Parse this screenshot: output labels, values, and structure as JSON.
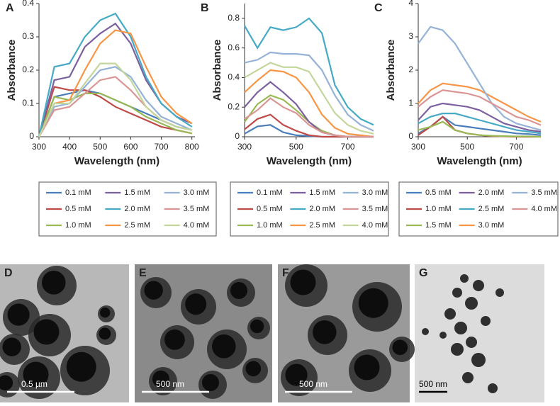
{
  "chart_data": [
    {
      "type": "line",
      "panel": "A",
      "x_label": "Wavelength (nm)",
      "y_label": "Absorbance",
      "x": [
        300,
        350,
        400,
        450,
        500,
        550,
        600,
        650,
        700,
        750,
        800
      ],
      "xlim": [
        300,
        810
      ],
      "xticks": [
        300,
        400,
        500,
        600,
        700,
        800
      ],
      "ylim": [
        0,
        0.4
      ],
      "yticks": [
        0,
        0.1,
        0.2,
        0.3,
        0.4
      ],
      "series": [
        {
          "name": "0.1 mM",
          "color": "#4a7ebb",
          "values": [
            0,
            0.12,
            0.13,
            0.14,
            0.13,
            0.11,
            0.09,
            0.07,
            0.05,
            0.03,
            0.02
          ]
        },
        {
          "name": "0.5 mM",
          "color": "#be4b48",
          "values": [
            0,
            0.15,
            0.14,
            0.14,
            0.12,
            0.09,
            0.07,
            0.05,
            0.03,
            0.02,
            0.01
          ]
        },
        {
          "name": "1.0 mM",
          "color": "#98b954",
          "values": [
            0,
            0.12,
            0.11,
            0.13,
            0.13,
            0.11,
            0.09,
            0.06,
            0.04,
            0.02,
            0.01
          ]
        },
        {
          "name": "1.5 mM",
          "color": "#7d60a0",
          "values": [
            0,
            0.17,
            0.18,
            0.27,
            0.31,
            0.34,
            0.28,
            0.17,
            0.1,
            0.06,
            0.04
          ]
        },
        {
          "name": "2.0 mM",
          "color": "#46aac5",
          "values": [
            0,
            0.21,
            0.22,
            0.3,
            0.35,
            0.37,
            0.3,
            0.18,
            0.1,
            0.06,
            0.03
          ]
        },
        {
          "name": "2.5 mM",
          "color": "#f79646",
          "values": [
            0,
            0.1,
            0.11,
            0.2,
            0.28,
            0.32,
            0.31,
            0.21,
            0.12,
            0.07,
            0.04
          ]
        },
        {
          "name": "3.0 mM",
          "color": "#95b3d7",
          "values": [
            0,
            0.09,
            0.1,
            0.15,
            0.2,
            0.21,
            0.18,
            0.11,
            0.06,
            0.04,
            0.02
          ]
        },
        {
          "name": "3.5 mM",
          "color": "#d99694",
          "values": [
            0,
            0.08,
            0.09,
            0.13,
            0.17,
            0.18,
            0.14,
            0.09,
            0.05,
            0.03,
            0.02
          ]
        },
        {
          "name": "4.0 mM",
          "color": "#c3d69b",
          "values": [
            0,
            0.1,
            0.1,
            0.16,
            0.22,
            0.22,
            0.17,
            0.09,
            0.05,
            0.03,
            0.02
          ]
        }
      ]
    },
    {
      "type": "line",
      "panel": "B",
      "x_label": "Wavelength (nm)",
      "y_label": "Absorbance",
      "x": [
        300,
        350,
        400,
        450,
        500,
        550,
        600,
        650,
        700,
        750,
        800
      ],
      "xlim": [
        300,
        800
      ],
      "xticks": [
        300,
        500,
        700
      ],
      "ylim": [
        0,
        0.9
      ],
      "yticks": [
        0,
        0.2,
        0.4,
        0.6,
        0.8
      ],
      "series": [
        {
          "name": "0.1 mM",
          "color": "#4a7ebb",
          "values": [
            0.02,
            0.07,
            0.08,
            0.03,
            0.01,
            0.005,
            0,
            0,
            0,
            0,
            0
          ]
        },
        {
          "name": "0.5 mM",
          "color": "#be4b48",
          "values": [
            0.05,
            0.12,
            0.15,
            0.08,
            0.04,
            0.01,
            0,
            0,
            0,
            0,
            0
          ]
        },
        {
          "name": "1.0 mM",
          "color": "#98b954",
          "values": [
            0.1,
            0.22,
            0.28,
            0.25,
            0.18,
            0.1,
            0.04,
            0.01,
            0,
            0,
            0
          ]
        },
        {
          "name": "1.5 mM",
          "color": "#7d60a0",
          "values": [
            0.2,
            0.3,
            0.37,
            0.3,
            0.22,
            0.1,
            0.03,
            0.01,
            0,
            0,
            0
          ]
        },
        {
          "name": "2.0 mM",
          "color": "#46aac5",
          "values": [
            0.75,
            0.6,
            0.74,
            0.72,
            0.74,
            0.8,
            0.7,
            0.35,
            0.2,
            0.12,
            0.08
          ]
        },
        {
          "name": "2.5 mM",
          "color": "#f79646",
          "values": [
            0.3,
            0.38,
            0.45,
            0.44,
            0.4,
            0.3,
            0.15,
            0.06,
            0.02,
            0.01,
            0
          ]
        },
        {
          "name": "3.0 mM",
          "color": "#95b3d7",
          "values": [
            0.5,
            0.52,
            0.57,
            0.56,
            0.56,
            0.55,
            0.45,
            0.28,
            0.15,
            0.08,
            0.04
          ]
        },
        {
          "name": "3.5 mM",
          "color": "#d99694",
          "values": [
            0.12,
            0.18,
            0.26,
            0.2,
            0.16,
            0.08,
            0.03,
            0.01,
            0,
            0,
            0
          ]
        },
        {
          "name": "4.0 mM",
          "color": "#c3d69b",
          "values": [
            0.4,
            0.45,
            0.5,
            0.47,
            0.47,
            0.44,
            0.3,
            0.16,
            0.08,
            0.04,
            0.02
          ]
        }
      ]
    },
    {
      "type": "line",
      "panel": "C",
      "x_label": "Wavelength (nm)",
      "y_label": "Absorbance",
      "x": [
        300,
        350,
        400,
        450,
        500,
        550,
        600,
        650,
        700,
        750,
        800
      ],
      "xlim": [
        300,
        800
      ],
      "xticks": [
        300,
        500,
        700
      ],
      "ylim": [
        0,
        4
      ],
      "yticks": [
        0,
        1,
        2,
        3,
        4
      ],
      "series": [
        {
          "name": "0.5 mM",
          "color": "#4a7ebb",
          "values": [
            0.1,
            0.3,
            0.6,
            0.35,
            0.3,
            0.25,
            0.2,
            0.15,
            0.1,
            0.08,
            0.05
          ]
        },
        {
          "name": "1.0 mM",
          "color": "#be4b48",
          "values": [
            0.05,
            0.3,
            0.6,
            0.2,
            0.1,
            0.05,
            0.02,
            0.01,
            0,
            0,
            0
          ]
        },
        {
          "name": "1.5 mM",
          "color": "#98b954",
          "values": [
            0.2,
            0.3,
            0.45,
            0.2,
            0.1,
            0.05,
            0.03,
            0.02,
            0.01,
            0.01,
            0
          ]
        },
        {
          "name": "2.0 mM",
          "color": "#7d60a0",
          "values": [
            0.5,
            0.9,
            1.0,
            0.95,
            0.9,
            0.8,
            0.6,
            0.4,
            0.3,
            0.2,
            0.15
          ]
        },
        {
          "name": "2.5 mM",
          "color": "#46aac5",
          "values": [
            0.4,
            0.6,
            0.7,
            0.7,
            0.6,
            0.5,
            0.4,
            0.3,
            0.2,
            0.15,
            0.1
          ]
        },
        {
          "name": "3.0 mM",
          "color": "#f79646",
          "values": [
            1.0,
            1.4,
            1.6,
            1.55,
            1.5,
            1.4,
            1.2,
            1.0,
            0.8,
            0.6,
            0.45
          ]
        },
        {
          "name": "3.5 mM",
          "color": "#95b3d7",
          "values": [
            2.8,
            3.3,
            3.2,
            2.8,
            2.2,
            1.6,
            1.0,
            0.6,
            0.4,
            0.3,
            0.2
          ]
        },
        {
          "name": "4.0 mM",
          "color": "#d99694",
          "values": [
            0.9,
            1.2,
            1.4,
            1.35,
            1.3,
            1.2,
            1.0,
            0.8,
            0.6,
            0.5,
            0.35
          ]
        }
      ]
    }
  ],
  "micrographs": [
    {
      "panel": "D",
      "scale_bar": "0.5 µm"
    },
    {
      "panel": "E",
      "scale_bar": "500 nm"
    },
    {
      "panel": "F",
      "scale_bar": "500 nm"
    },
    {
      "panel": "G",
      "scale_bar": "500 nm"
    }
  ]
}
